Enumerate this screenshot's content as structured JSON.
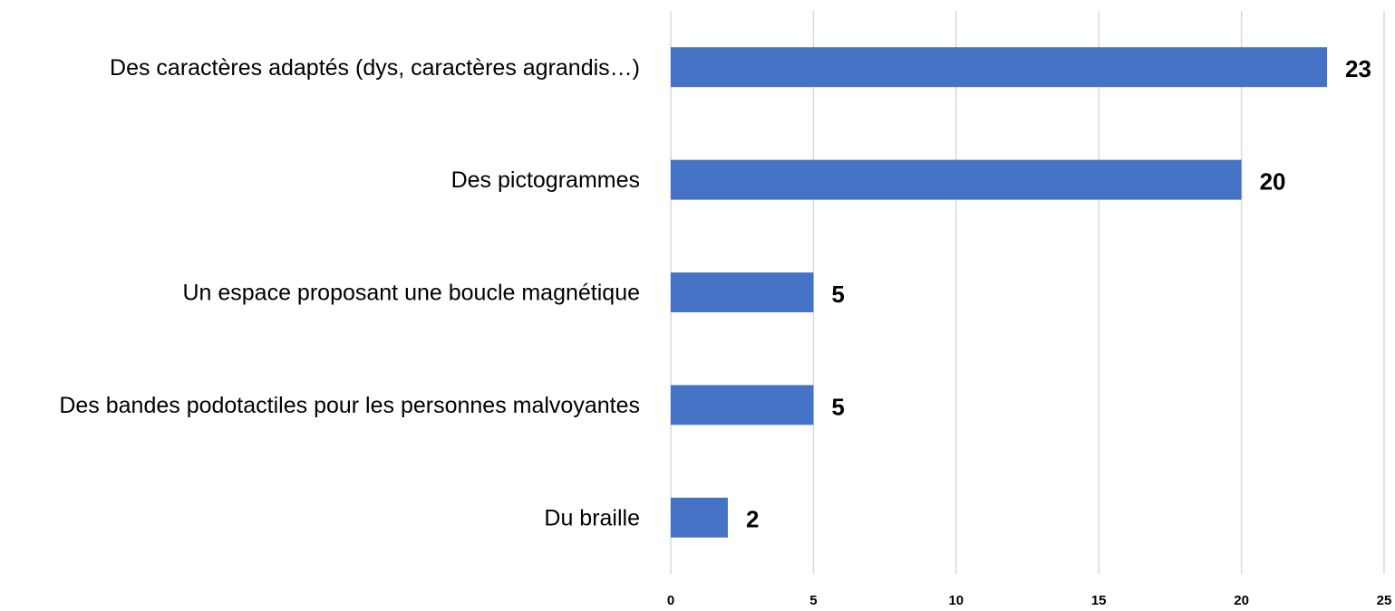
{
  "chart_data": {
    "type": "bar",
    "orientation": "horizontal",
    "categories": [
      "Des caractères adaptés (dys, caractères agrandis…)",
      "Des pictogrammes",
      "Un espace proposant une boucle magnétique",
      "Des bandes podotactiles pour les personnes malvoyantes",
      "Du braille"
    ],
    "values": [
      23,
      20,
      5,
      5,
      2
    ],
    "color": "#4472c4",
    "xlim": [
      0,
      25
    ],
    "xticks": [
      0,
      5,
      10,
      15,
      20,
      25
    ],
    "grid": true
  }
}
